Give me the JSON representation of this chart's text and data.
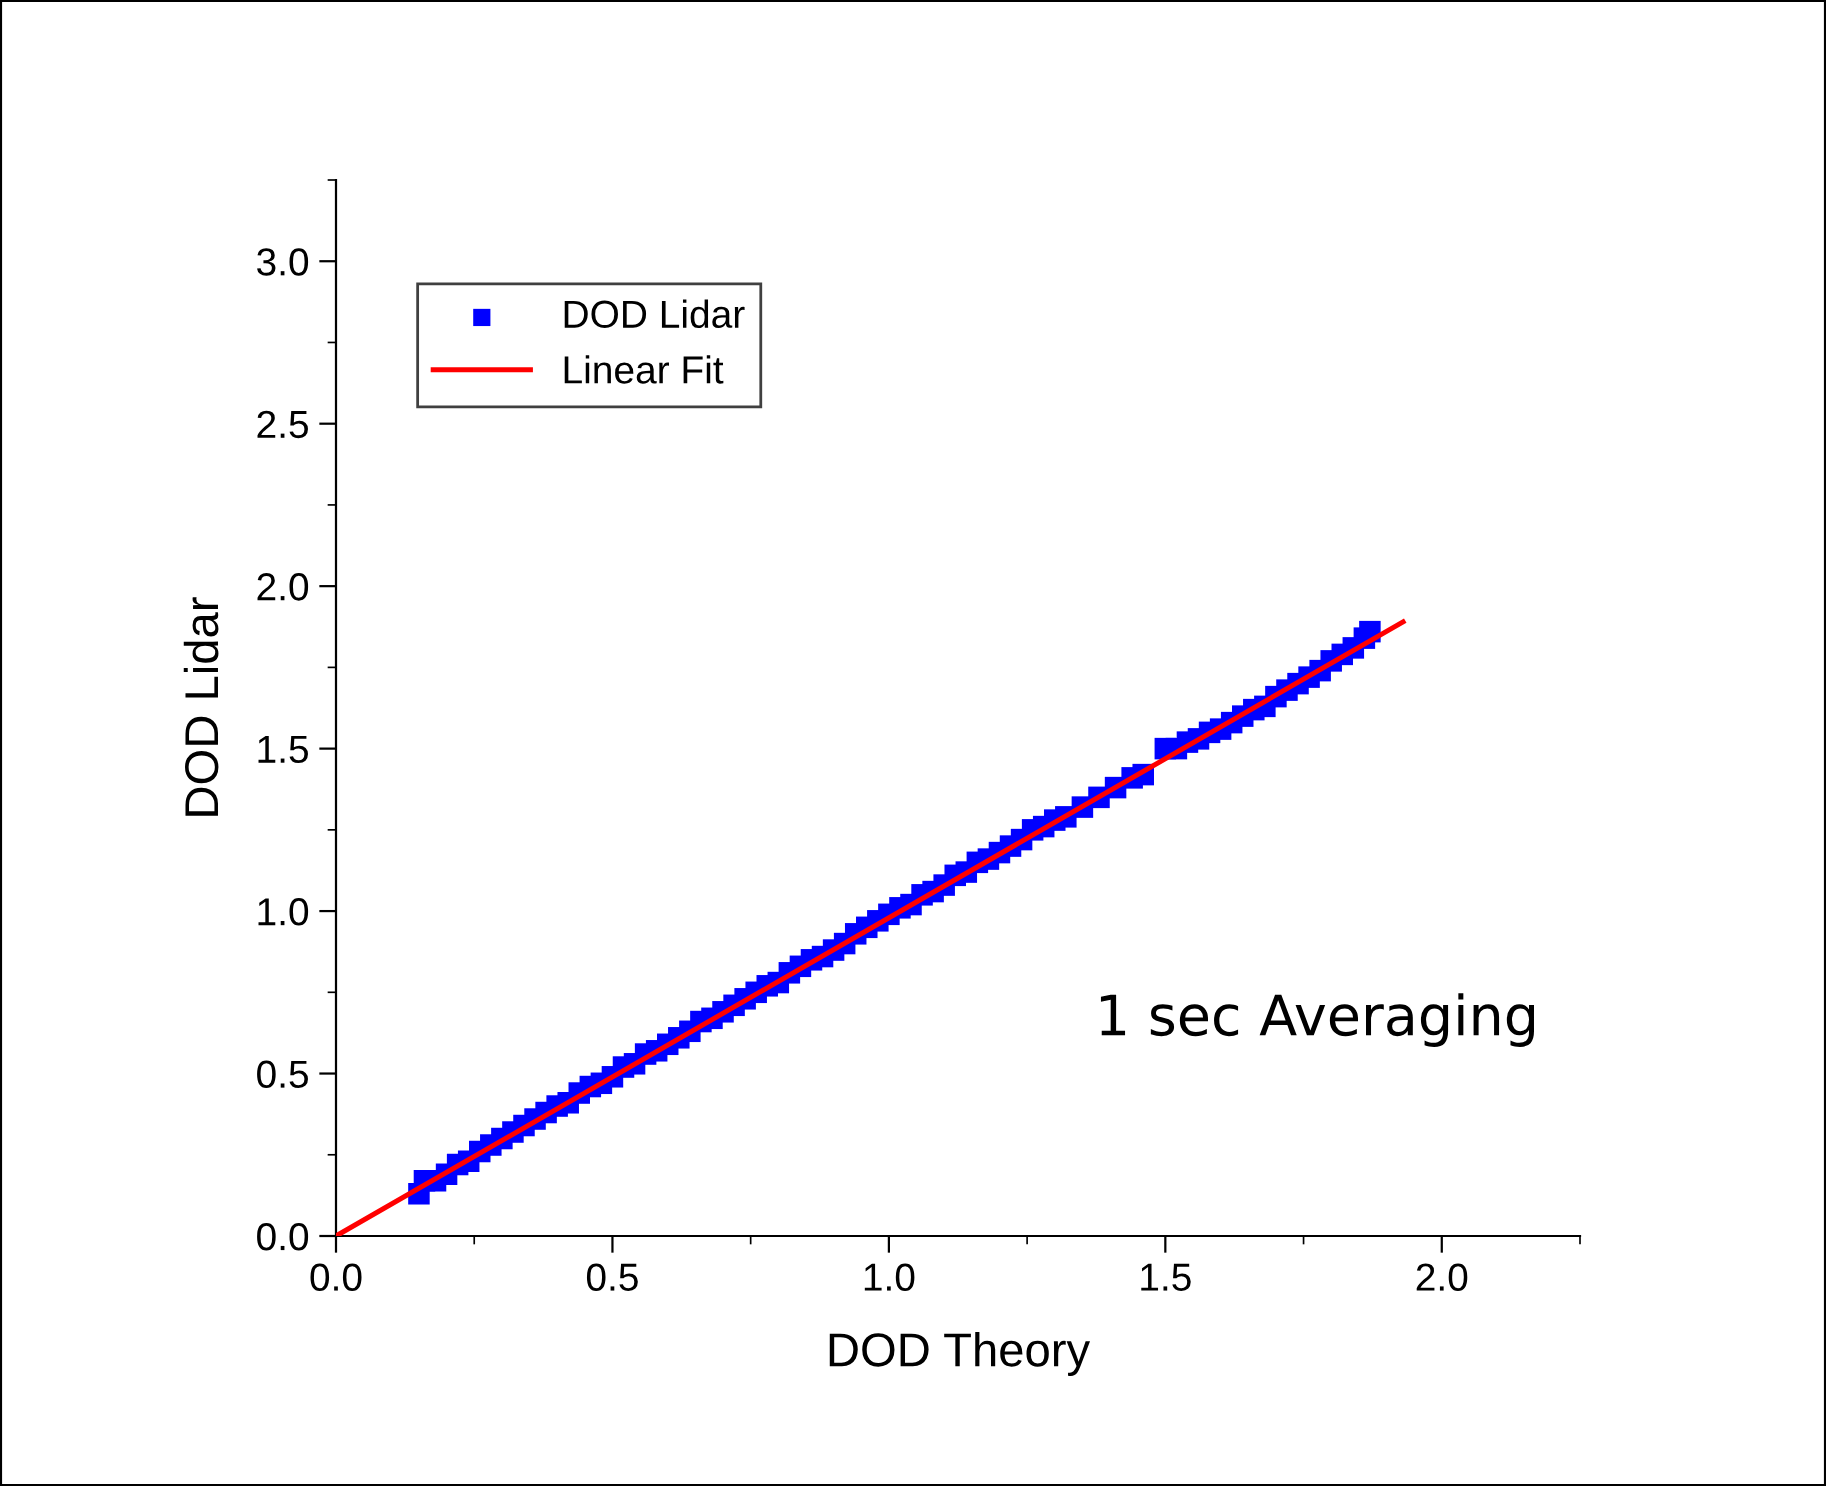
{
  "chart_data": {
    "type": "scatter",
    "xlabel": "DOD Theory",
    "ylabel": "DOD Lidar",
    "xlim": [
      0,
      2.25
    ],
    "ylim": [
      0,
      3.25
    ],
    "xticks": [
      {
        "value": 0,
        "label": "0.0"
      },
      {
        "value": 0.5,
        "label": "0.5"
      },
      {
        "value": 1,
        "label": "1.0"
      },
      {
        "value": 1.5,
        "label": "1.5"
      },
      {
        "value": 2,
        "label": "2.0"
      }
    ],
    "yticks": [
      {
        "value": 0,
        "label": "0.0"
      },
      {
        "value": 0.5,
        "label": "0.5"
      },
      {
        "value": 1,
        "label": "1.0"
      },
      {
        "value": 1.5,
        "label": "1.5"
      },
      {
        "value": 2,
        "label": "2.0"
      },
      {
        "value": 2.5,
        "label": "2.5"
      },
      {
        "value": 3,
        "label": "3.0"
      }
    ],
    "grid": false,
    "legend": "top left",
    "annotations": [
      "1 sec Averaging"
    ],
    "series": [
      {
        "name": "DOD Lidar",
        "marker": "square",
        "color": "#0000ff",
        "x": [
          0.15,
          0.16,
          0.18,
          0.2,
          0.22,
          0.24,
          0.26,
          0.28,
          0.3,
          0.32,
          0.34,
          0.36,
          0.38,
          0.4,
          0.42,
          0.44,
          0.46,
          0.48,
          0.5,
          0.52,
          0.54,
          0.56,
          0.58,
          0.6,
          0.62,
          0.64,
          0.66,
          0.68,
          0.7,
          0.72,
          0.74,
          0.76,
          0.78,
          0.8,
          0.82,
          0.84,
          0.86,
          0.88,
          0.9,
          0.92,
          0.94,
          0.96,
          0.98,
          1.0,
          1.02,
          1.04,
          1.06,
          1.08,
          1.1,
          1.12,
          1.14,
          1.16,
          1.18,
          1.2,
          1.22,
          1.24,
          1.26,
          1.28,
          1.3,
          1.32,
          1.35,
          1.38,
          1.41,
          1.44,
          1.46,
          1.5,
          1.52,
          1.54,
          1.56,
          1.58,
          1.6,
          1.62,
          1.64,
          1.66,
          1.68,
          1.7,
          1.72,
          1.74,
          1.76,
          1.78,
          1.8,
          1.82,
          1.84,
          1.86,
          1.87
        ],
        "values": [
          0.13,
          0.17,
          0.17,
          0.19,
          0.22,
          0.23,
          0.26,
          0.28,
          0.3,
          0.32,
          0.34,
          0.36,
          0.38,
          0.4,
          0.41,
          0.44,
          0.46,
          0.47,
          0.49,
          0.52,
          0.53,
          0.56,
          0.57,
          0.59,
          0.61,
          0.63,
          0.66,
          0.67,
          0.69,
          0.71,
          0.73,
          0.75,
          0.77,
          0.78,
          0.81,
          0.83,
          0.85,
          0.86,
          0.88,
          0.9,
          0.93,
          0.95,
          0.97,
          0.99,
          1.01,
          1.02,
          1.05,
          1.06,
          1.08,
          1.11,
          1.12,
          1.15,
          1.16,
          1.18,
          1.2,
          1.22,
          1.25,
          1.26,
          1.28,
          1.29,
          1.32,
          1.35,
          1.38,
          1.41,
          1.42,
          1.5,
          1.5,
          1.52,
          1.53,
          1.55,
          1.56,
          1.58,
          1.6,
          1.62,
          1.63,
          1.66,
          1.68,
          1.7,
          1.72,
          1.74,
          1.77,
          1.79,
          1.81,
          1.84,
          1.86
        ]
      },
      {
        "name": "Linear Fit",
        "type": "line",
        "line_style": "solid",
        "color": "#ff0000",
        "x": [
          0,
          1.93
        ],
        "values": [
          0,
          1.89
        ]
      }
    ]
  }
}
